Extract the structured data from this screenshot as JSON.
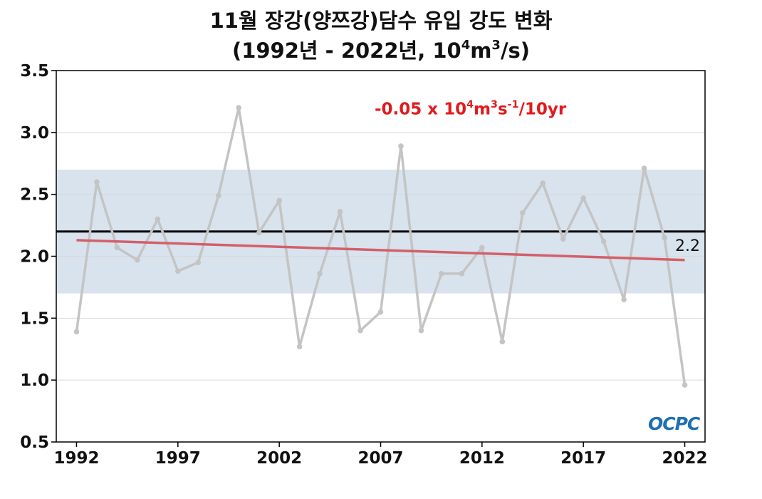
{
  "title_line1": "11월 장강(양쯔강)담수 유입 강도 변화",
  "title_line2": {
    "pre": "(1992년 - 2022년, 10",
    "sup1": "4",
    "mid": "m",
    "sup2": "3",
    "post": "/s)"
  },
  "trend_label": {
    "a": "-0.05 x 10",
    "s1": "4",
    "b": "m",
    "s2": "3",
    "c": "s",
    "s3": "-1",
    "d": "/10yr"
  },
  "mean_label": "2.2",
  "logo": "OCPC",
  "colors": {
    "series": "#c4c4c4",
    "trend": "#d45f6a",
    "mean": "#000000",
    "band": "#d8e3ee",
    "trend_text": "#e31a1c"
  },
  "chart_data": {
    "type": "line",
    "x": [
      1992,
      1993,
      1994,
      1995,
      1996,
      1997,
      1998,
      1999,
      2000,
      2001,
      2002,
      2003,
      2004,
      2005,
      2006,
      2007,
      2008,
      2009,
      2010,
      2011,
      2012,
      2013,
      2014,
      2015,
      2016,
      2017,
      2018,
      2019,
      2020,
      2021,
      2022
    ],
    "series": [
      {
        "values": [
          1.39,
          2.6,
          2.07,
          1.97,
          2.3,
          1.88,
          1.95,
          2.49,
          3.2,
          2.19,
          2.45,
          1.27,
          1.86,
          2.36,
          1.4,
          1.55,
          2.89,
          1.4,
          1.86,
          1.86,
          2.07,
          1.31,
          2.35,
          2.59,
          2.14,
          2.47,
          2.12,
          1.65,
          2.71,
          2.15,
          0.96
        ]
      }
    ],
    "trend": {
      "start": [
        1992,
        2.13
      ],
      "end": [
        2022,
        1.97
      ],
      "slope_per_decade": -0.05
    },
    "mean": 2.2,
    "band": [
      1.7,
      2.7
    ],
    "xlim": [
      1991,
      2023
    ],
    "ylim": [
      0.5,
      3.5
    ],
    "xticks": [
      1992,
      1997,
      2002,
      2007,
      2012,
      2017,
      2022
    ],
    "yticks": [
      "0.5",
      "1.0",
      "1.5",
      "2.0",
      "2.5",
      "3.0",
      "3.5"
    ],
    "grid": true
  }
}
